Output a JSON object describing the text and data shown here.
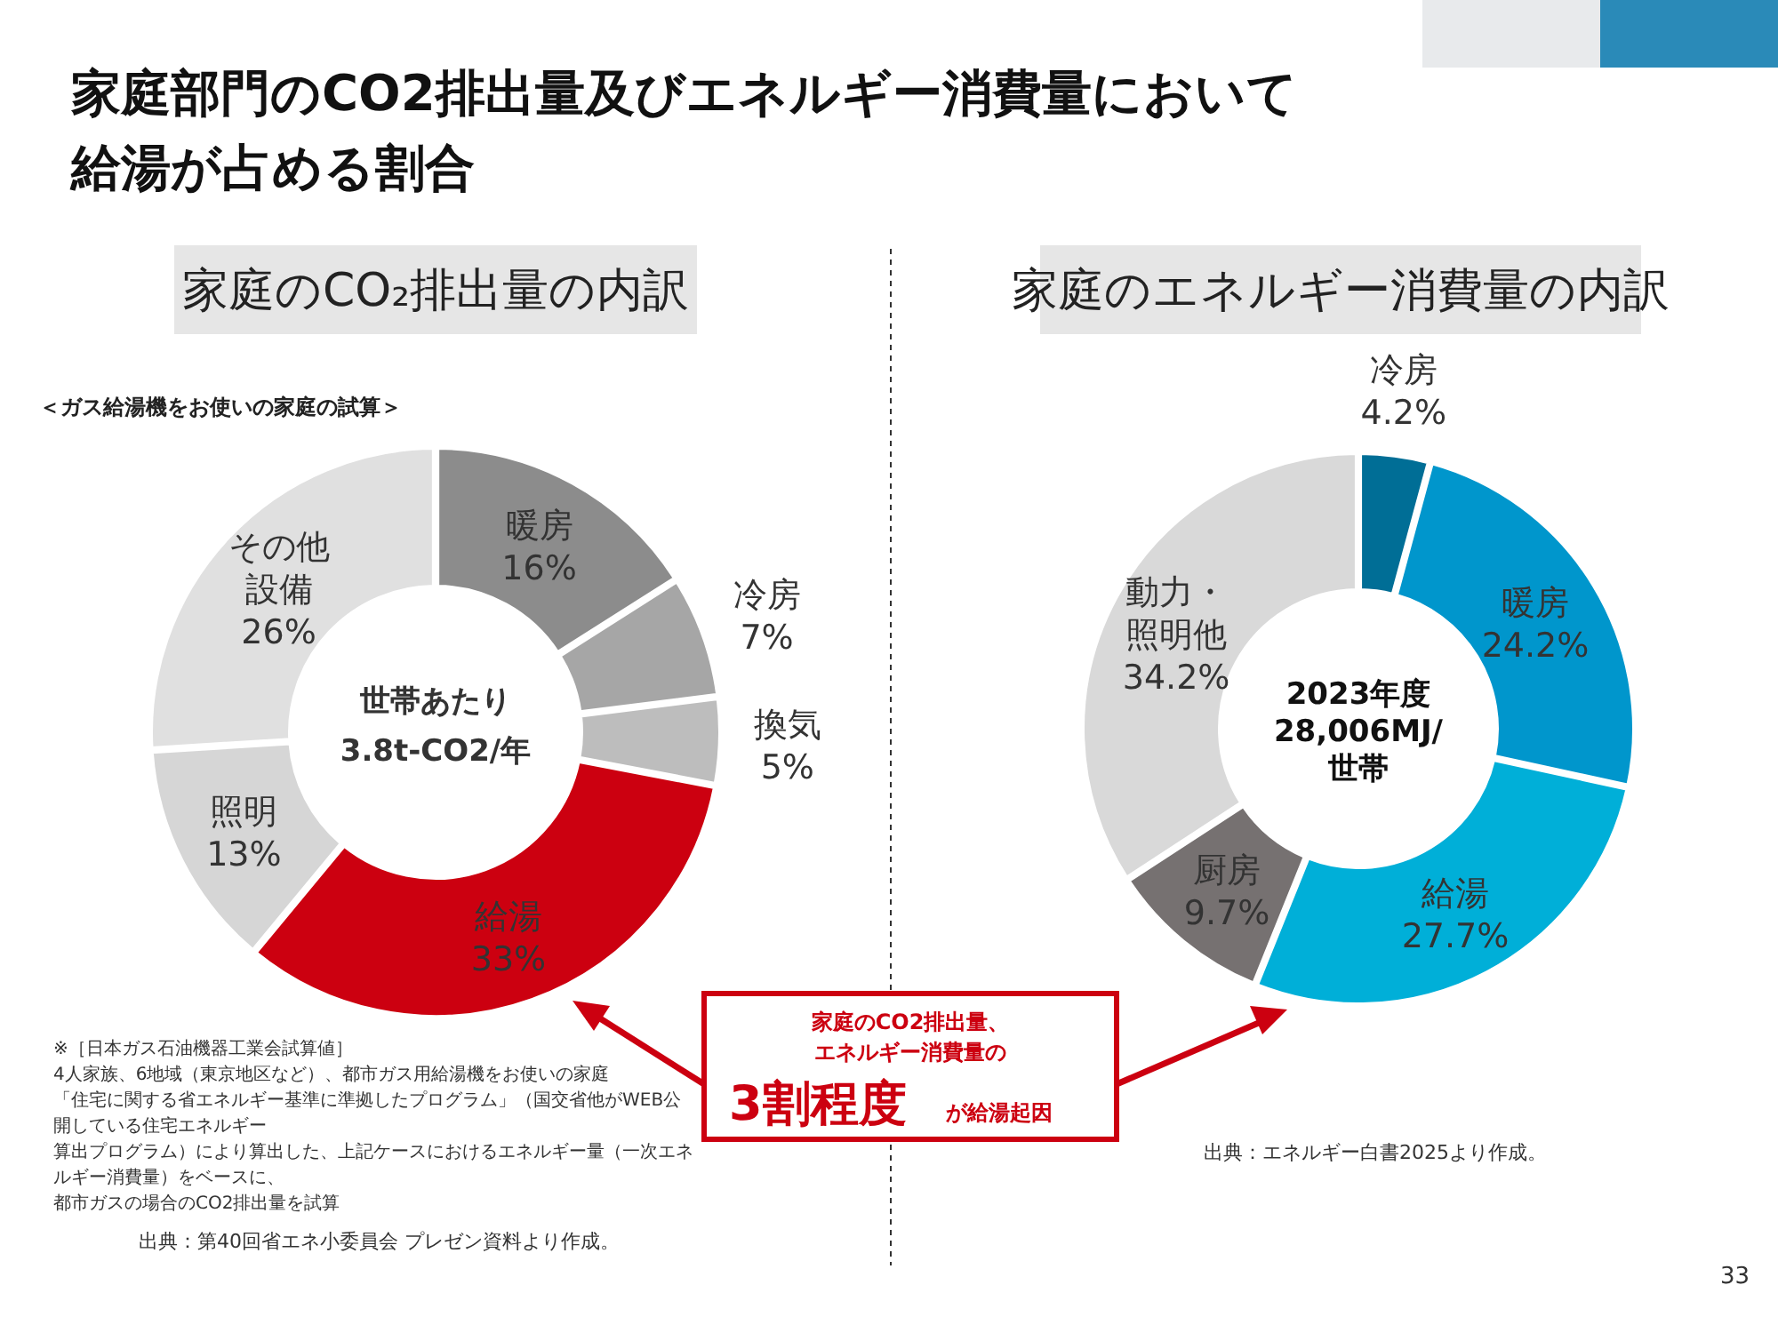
{
  "chart_data": [
    {
      "type": "donut",
      "title": "家庭のCO₂排出量の内訳",
      "subtitle": "＜ガス給湯機をお使いの家庭の試算＞",
      "categories": [
        "暖房",
        "冷房",
        "換気",
        "給湯",
        "照明",
        "その他設備"
      ],
      "values": [
        16,
        7,
        5,
        33,
        13,
        26
      ],
      "colors": [
        "#8c8c8c",
        "#a6a6a6",
        "#bdbdbd",
        "#cc0010",
        "#d6d6d6",
        "#e0e0e0"
      ],
      "value_labels": [
        "16%",
        "7%",
        "5%",
        "33%",
        "13%",
        "26%"
      ],
      "annotations": [
        "家庭部門のCO2排出量及びエネルギー消費量において",
        "給湯が占める割合",
        "世帯あたり",
        "3.8t-CO2/年",
        "※［日本ガス石油機器工業会試算値］",
        "4人家族、6地域（東京地区など）、都市ガス用給湯機をお使いの家庭",
        "「住宅に関する省エネルギー基準に準拠したプログラム」（国交省他がWEB公",
        "開している住宅エネルギー",
        "算出プログラム）により算出した、上記ケースにおけるエネルギー量（一次エネ",
        "ルギー消費量）をベースに、",
        "都市ガスの場合のCO2排出量を試算",
        "出典：第40回省エネ小委員会 プレゼン資料より作成。",
        "家庭のCO2排出量、",
        "エネルギー消費量の",
        "3割程度",
        "が給湯起因",
        "33"
      ]
    },
    {
      "type": "donut",
      "title": "家庭のエネルギー消費量の内訳",
      "categories": [
        "冷房",
        "暖房",
        "給湯",
        "厨房",
        "動力・照明他"
      ],
      "values": [
        4.2,
        24.2,
        27.7,
        9.7,
        34.2
      ],
      "colors": [
        "#006e96",
        "#0096cc",
        "#00afd8",
        "#767171",
        "#d9d9d9"
      ],
      "value_labels": [
        "4.2%",
        "24.2%",
        "27.7%",
        "9.7%",
        "34.2%"
      ],
      "annotations": [
        "2023年度",
        "28,006MJ/",
        "世帯",
        "出典：エネルギー白書2025より作成。"
      ]
    }
  ]
}
